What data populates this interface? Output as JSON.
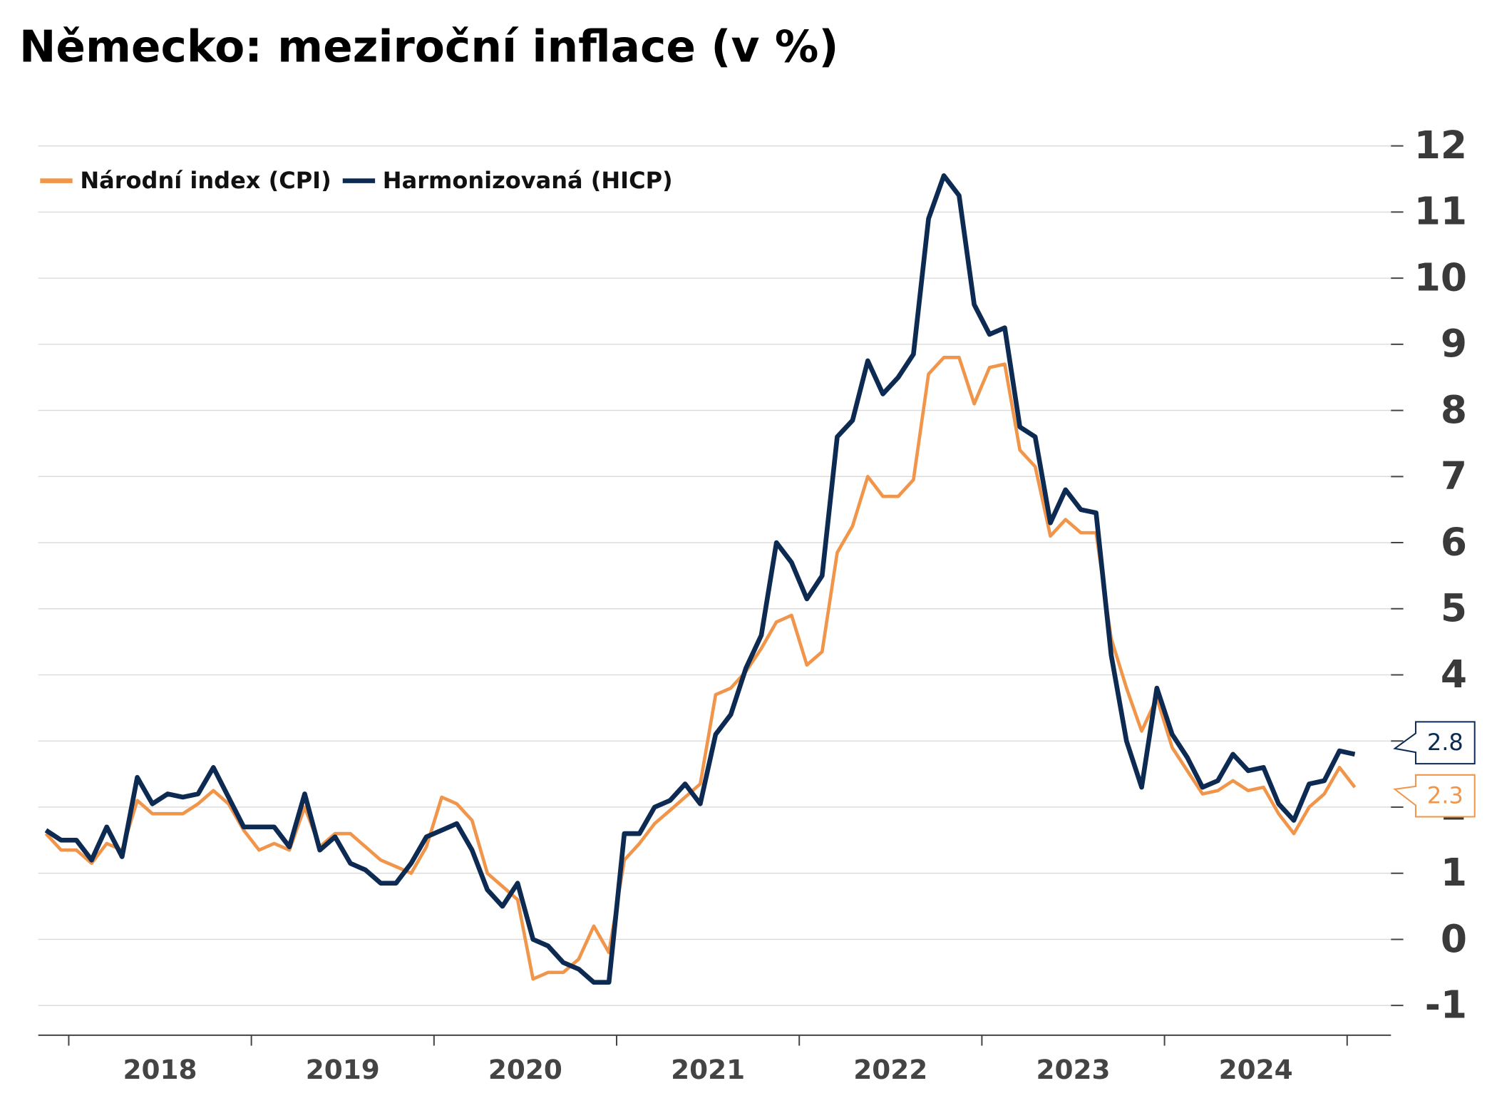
{
  "chart_data": {
    "type": "line",
    "title": "Německo: meziroční inflace (v %)",
    "legend": "upper left",
    "grid": true,
    "end_labels": true,
    "ylim": [
      -1.45,
      12.25
    ],
    "yticks": [
      -1,
      0,
      1,
      2,
      3,
      4,
      5,
      6,
      7,
      8,
      9,
      10,
      11,
      12
    ],
    "xlim": [
      2017.833,
      2025.24
    ],
    "xticks": [
      2018,
      2019,
      2020,
      2021,
      2022,
      2023,
      2024,
      {
        "value": 2025,
        "label": null
      }
    ],
    "x": [
      2017.875,
      2017.958,
      2018.042,
      2018.125,
      2018.208,
      2018.292,
      2018.375,
      2018.458,
      2018.542,
      2018.625,
      2018.708,
      2018.792,
      2018.875,
      2018.958,
      2019.042,
      2019.125,
      2019.208,
      2019.292,
      2019.375,
      2019.458,
      2019.542,
      2019.625,
      2019.708,
      2019.792,
      2019.875,
      2019.958,
      2020.042,
      2020.125,
      2020.208,
      2020.292,
      2020.375,
      2020.458,
      2020.542,
      2020.625,
      2020.708,
      2020.792,
      2020.875,
      2020.958,
      2021.042,
      2021.125,
      2021.208,
      2021.292,
      2021.375,
      2021.458,
      2021.542,
      2021.625,
      2021.708,
      2021.792,
      2021.875,
      2021.958,
      2022.042,
      2022.125,
      2022.208,
      2022.292,
      2022.375,
      2022.458,
      2022.542,
      2022.625,
      2022.708,
      2022.792,
      2022.875,
      2022.958,
      2023.042,
      2023.125,
      2023.208,
      2023.292,
      2023.375,
      2023.458,
      2023.542,
      2023.625,
      2023.708,
      2023.792,
      2023.875,
      2023.958,
      2024.042,
      2024.125,
      2024.208,
      2024.292,
      2024.375,
      2024.458,
      2024.542,
      2024.625,
      2024.708,
      2024.792,
      2024.875,
      2024.958,
      2025.042
    ],
    "series": [
      {
        "name": "Národní index (CPI)",
        "color": "#f0954a",
        "width": 3.5,
        "values": [
          1.6,
          1.35,
          1.35,
          1.15,
          1.45,
          1.35,
          2.1,
          1.9,
          1.9,
          1.9,
          2.05,
          2.25,
          2.05,
          1.65,
          1.35,
          1.45,
          1.35,
          2.0,
          1.4,
          1.6,
          1.6,
          1.4,
          1.2,
          1.1,
          1.0,
          1.4,
          2.15,
          2.05,
          1.8,
          1.0,
          0.8,
          0.6,
          -0.6,
          -0.5,
          -0.5,
          -0.3,
          0.2,
          -0.2,
          1.2,
          1.45,
          1.75,
          1.95,
          2.15,
          2.35,
          3.7,
          3.8,
          4.05,
          4.4,
          4.8,
          4.9,
          4.15,
          4.35,
          5.85,
          6.25,
          7.0,
          6.7,
          6.7,
          6.95,
          8.55,
          8.8,
          8.8,
          8.1,
          8.65,
          8.7,
          7.4,
          7.15,
          6.1,
          6.35,
          6.15,
          6.15,
          4.55,
          3.8,
          3.15,
          3.65,
          2.9,
          2.55,
          2.2,
          2.25,
          2.4,
          2.25,
          2.3,
          1.9,
          1.6,
          2.0,
          2.2,
          2.6,
          2.3
        ]
      },
      {
        "name": "Harmonizovaná (HICP)",
        "color": "#0d2b52",
        "width": 5,
        "values": [
          1.65,
          1.5,
          1.5,
          1.2,
          1.7,
          1.25,
          2.45,
          2.05,
          2.2,
          2.15,
          2.2,
          2.6,
          2.15,
          1.7,
          1.7,
          1.7,
          1.4,
          2.2,
          1.35,
          1.55,
          1.15,
          1.05,
          0.85,
          0.85,
          1.15,
          1.55,
          1.65,
          1.75,
          1.35,
          0.75,
          0.5,
          0.85,
          0.0,
          -0.1,
          -0.35,
          -0.45,
          -0.65,
          -0.65,
          1.6,
          1.6,
          2.0,
          2.1,
          2.35,
          2.05,
          3.1,
          3.4,
          4.1,
          4.6,
          6.0,
          5.7,
          5.15,
          5.5,
          7.6,
          7.85,
          8.75,
          8.25,
          8.5,
          8.85,
          10.9,
          11.55,
          11.25,
          9.6,
          9.15,
          9.25,
          7.75,
          7.6,
          6.3,
          6.8,
          6.5,
          6.45,
          4.3,
          3.0,
          2.3,
          3.8,
          3.1,
          2.75,
          2.3,
          2.4,
          2.8,
          2.55,
          2.6,
          2.05,
          1.8,
          2.35,
          2.4,
          2.85,
          2.8
        ]
      }
    ]
  }
}
